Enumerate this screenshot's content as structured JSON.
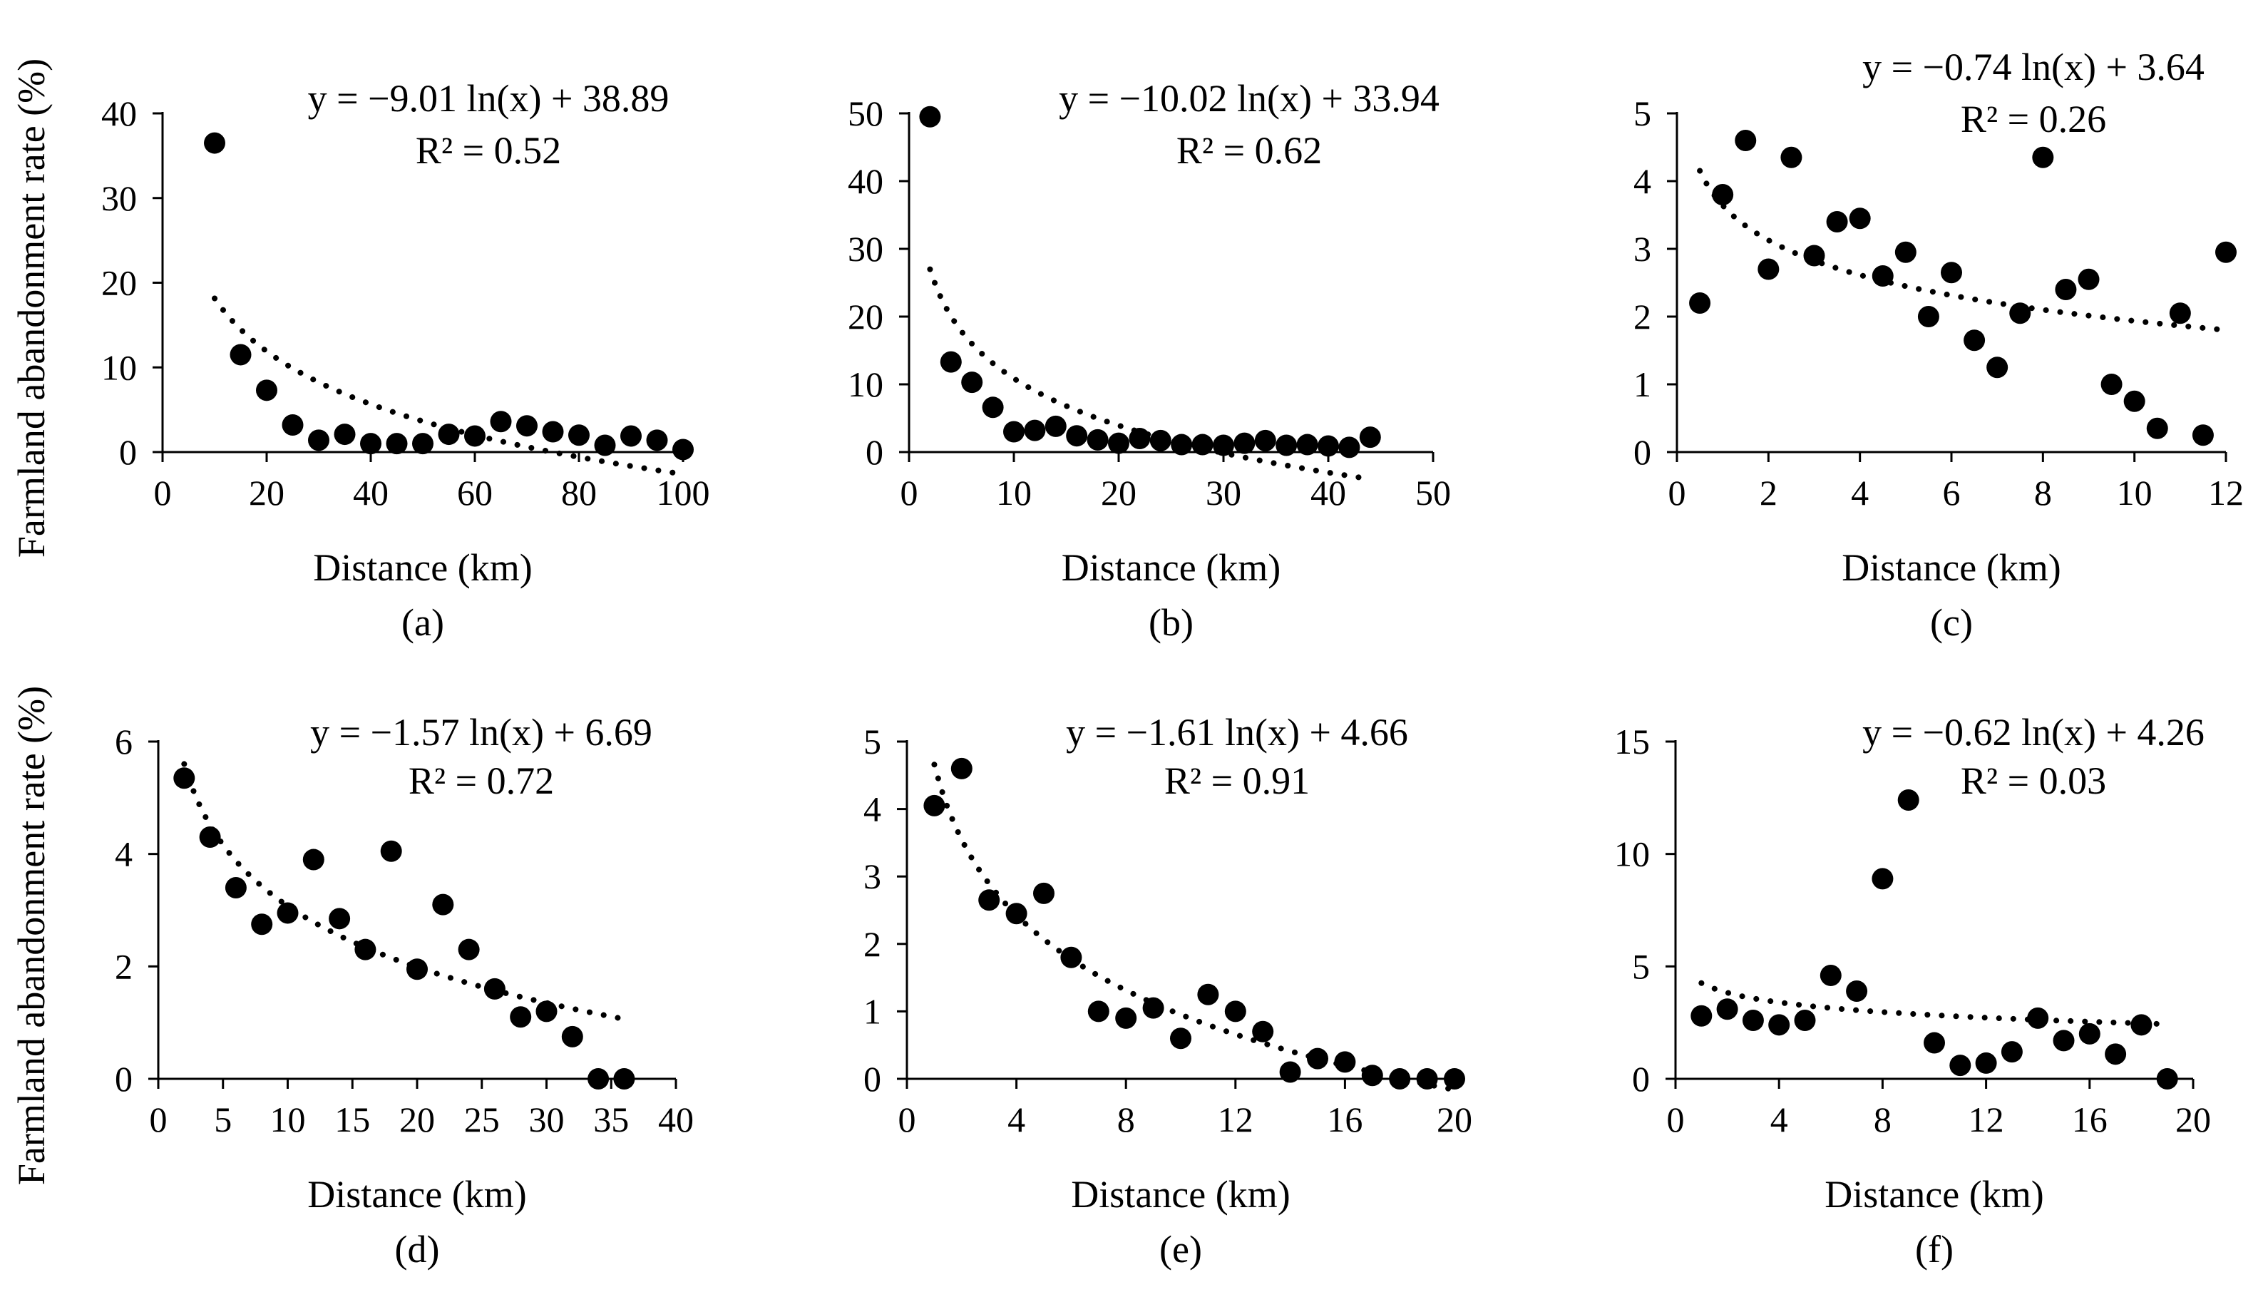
{
  "colors": {
    "marker": "#000000",
    "axis": "#000000",
    "trend": "#000000",
    "background": "#ffffff"
  },
  "chart_data": [
    {
      "type": "scatter",
      "panel": "(a)",
      "xlabel": "Distance (km)",
      "ylabel": "Farmland abandonment rate (%)",
      "xlim": [
        0,
        100
      ],
      "ylim": [
        0,
        40
      ],
      "xticks": [
        "0",
        "20",
        "40",
        "60",
        "80",
        "100"
      ],
      "yticks": [
        "0",
        "10",
        "20",
        "30",
        "40"
      ],
      "equation": "y = −9.01 ln(x) + 38.89",
      "r2": "R² = 0.52",
      "trend": {
        "a": -9.01,
        "b": 38.89,
        "x_start": 10,
        "x_end": 100
      },
      "x": [
        10,
        15,
        20,
        25,
        30,
        35,
        40,
        45,
        50,
        55,
        60,
        65,
        70,
        75,
        80,
        85,
        90,
        95,
        100
      ],
      "y": [
        36.5,
        11.5,
        7.3,
        3.2,
        1.4,
        2.1,
        1.0,
        1.0,
        1.0,
        2.1,
        1.9,
        3.6,
        3.1,
        2.4,
        2.0,
        0.8,
        1.9,
        1.4,
        0.3
      ]
    },
    {
      "type": "scatter",
      "panel": "(b)",
      "xlabel": "Distance (km)",
      "ylabel": "",
      "xlim": [
        0,
        50
      ],
      "ylim": [
        0,
        50
      ],
      "xticks": [
        "0",
        "10",
        "20",
        "30",
        "40",
        "50"
      ],
      "yticks": [
        "0",
        "10",
        "20",
        "30",
        "40",
        "50"
      ],
      "equation": "y = −10.02 ln(x) + 33.94",
      "r2": "R² = 0.62",
      "trend": {
        "a": -10.02,
        "b": 33.94,
        "x_start": 2,
        "x_end": 44
      },
      "x": [
        2,
        4,
        6,
        8,
        10,
        12,
        14,
        16,
        18,
        20,
        22,
        24,
        26,
        28,
        30,
        32,
        34,
        36,
        38,
        40,
        42,
        44
      ],
      "y": [
        49.5,
        13.3,
        10.3,
        6.6,
        3.0,
        3.2,
        3.8,
        2.4,
        1.8,
        1.3,
        2.0,
        1.7,
        1.1,
        1.1,
        1.0,
        1.3,
        1.7,
        1.0,
        1.1,
        0.9,
        0.7,
        2.2
      ]
    },
    {
      "type": "scatter",
      "panel": "(c)",
      "xlabel": "Distance (km)",
      "ylabel": "",
      "xlim": [
        0,
        12
      ],
      "ylim": [
        0,
        5
      ],
      "xticks": [
        "0",
        "2",
        "4",
        "6",
        "8",
        "10",
        "12"
      ],
      "yticks": [
        "0",
        "1",
        "2",
        "3",
        "4",
        "5"
      ],
      "equation": "y = −0.74 ln(x) + 3.64",
      "r2": "R² = 0.26",
      "trend": {
        "a": -0.74,
        "b": 3.64,
        "x_start": 0.5,
        "x_end": 12
      },
      "x": [
        0.5,
        1,
        1.5,
        2,
        2.5,
        3,
        3.5,
        4,
        4.5,
        5,
        5.5,
        6,
        6.5,
        7,
        7.5,
        8,
        8.5,
        9,
        9.5,
        10,
        10.5,
        11,
        11.5,
        12
      ],
      "y": [
        2.2,
        3.8,
        4.6,
        2.7,
        4.35,
        2.9,
        3.4,
        3.45,
        2.6,
        2.95,
        2.0,
        2.65,
        1.65,
        1.25,
        2.05,
        4.35,
        2.4,
        2.55,
        1.0,
        0.75,
        0.35,
        2.05,
        0.25,
        2.95
      ]
    },
    {
      "type": "scatter",
      "panel": "(d)",
      "xlabel": "Distance (km)",
      "ylabel": "Farmland abandonment rate (%)",
      "xlim": [
        0,
        40
      ],
      "ylim": [
        0,
        6
      ],
      "xticks": [
        "0",
        "5",
        "10",
        "15",
        "20",
        "25",
        "30",
        "35",
        "40"
      ],
      "yticks": [
        "0",
        "2",
        "4",
        "6"
      ],
      "equation": "y = −1.57 ln(x) + 6.69",
      "r2": "R² = 0.72",
      "trend": {
        "a": -1.57,
        "b": 6.69,
        "x_start": 2,
        "x_end": 36
      },
      "x": [
        2,
        4,
        6,
        8,
        10,
        12,
        14,
        16,
        18,
        20,
        22,
        24,
        26,
        28,
        30,
        32,
        34,
        36
      ],
      "y": [
        5.35,
        4.3,
        3.4,
        2.75,
        2.95,
        3.9,
        2.85,
        2.3,
        4.05,
        1.95,
        3.1,
        2.3,
        1.6,
        1.1,
        1.2,
        0.75,
        0.0,
        0.0
      ]
    },
    {
      "type": "scatter",
      "panel": "(e)",
      "xlabel": "Distance (km)",
      "ylabel": "",
      "xlim": [
        0,
        20
      ],
      "ylim": [
        0,
        5
      ],
      "xticks": [
        "0",
        "4",
        "8",
        "12",
        "16",
        "20"
      ],
      "yticks": [
        "0",
        "1",
        "2",
        "3",
        "4",
        "5"
      ],
      "equation": "y = −1.61 ln(x) + 4.66",
      "r2": "R² = 0.91",
      "trend": {
        "a": -1.61,
        "b": 4.66,
        "x_start": 1,
        "x_end": 20
      },
      "x": [
        1,
        2,
        3,
        4,
        5,
        6,
        7,
        8,
        9,
        10,
        11,
        12,
        13,
        14,
        15,
        16,
        17,
        18,
        19,
        20
      ],
      "y": [
        4.05,
        4.6,
        2.65,
        2.45,
        2.75,
        1.8,
        1.0,
        0.9,
        1.05,
        0.6,
        1.25,
        1.0,
        0.7,
        0.1,
        0.3,
        0.25,
        0.05,
        0.0,
        0.0,
        0.0
      ]
    },
    {
      "type": "scatter",
      "panel": "(f)",
      "xlabel": "Distance (km)",
      "ylabel": "",
      "xlim": [
        0,
        20
      ],
      "ylim": [
        0,
        15
      ],
      "xticks": [
        "0",
        "4",
        "8",
        "12",
        "16",
        "20"
      ],
      "yticks": [
        "0",
        "5",
        "10",
        "15"
      ],
      "equation": "y = −0.62 ln(x) + 4.26",
      "r2": "R² = 0.03",
      "trend": {
        "a": -0.62,
        "b": 4.26,
        "x_start": 1,
        "x_end": 19
      },
      "x": [
        1,
        2,
        3,
        4,
        5,
        6,
        7,
        8,
        9,
        10,
        11,
        12,
        13,
        14,
        15,
        16,
        17,
        18,
        19
      ],
      "y": [
        2.8,
        3.1,
        2.6,
        2.4,
        2.6,
        4.6,
        3.9,
        8.9,
        12.4,
        1.6,
        0.6,
        0.7,
        1.2,
        2.7,
        1.7,
        2.0,
        1.1,
        2.4,
        0.0
      ]
    }
  ]
}
